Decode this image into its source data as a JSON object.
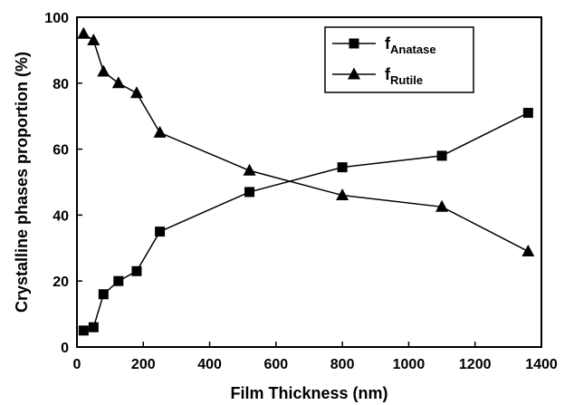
{
  "chart_data": {
    "type": "line",
    "xlabel": "Film Thickness (nm)",
    "ylabel": "Crystalline phases proportion (%)",
    "xlim": [
      0,
      1400
    ],
    "ylim": [
      0,
      100
    ],
    "xticks": [
      0,
      200,
      400,
      600,
      800,
      1000,
      1200,
      1400
    ],
    "yticks": [
      0,
      20,
      40,
      60,
      80,
      100
    ],
    "grid": false,
    "legend_position": "top-right",
    "series": [
      {
        "name_main": "f",
        "name_sub": "Anatase",
        "marker": "square",
        "x": [
          20,
          50,
          80,
          125,
          180,
          250,
          520,
          800,
          1100,
          1360
        ],
        "y": [
          5,
          6,
          16,
          20,
          23,
          35,
          47,
          54.5,
          58,
          71
        ]
      },
      {
        "name_main": "f",
        "name_sub": "Rutile",
        "marker": "triangle",
        "x": [
          20,
          50,
          80,
          125,
          180,
          250,
          520,
          800,
          1100,
          1360
        ],
        "y": [
          95,
          93,
          83.5,
          80,
          77,
          65,
          53.5,
          46,
          42.5,
          29
        ]
      }
    ]
  }
}
